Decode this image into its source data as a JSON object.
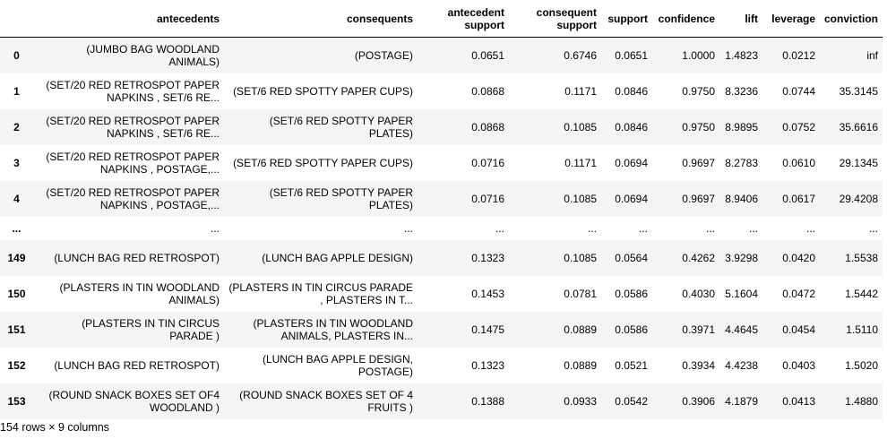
{
  "columns": [
    "",
    "antecedents",
    "consequents",
    "antecedent support",
    "consequent support",
    "support",
    "confidence",
    "lift",
    "leverage",
    "conviction"
  ],
  "rows": [
    {
      "index": "0",
      "antecedents": "(JUMBO BAG WOODLAND ANIMALS)",
      "consequents": "(POSTAGE)",
      "antecedent_support": "0.0651",
      "consequent_support": "0.6746",
      "support": "0.0651",
      "confidence": "1.0000",
      "lift": "1.4823",
      "leverage": "0.0212",
      "conviction": "inf"
    },
    {
      "index": "1",
      "antecedents": "(SET/20 RED RETROSPOT PAPER NAPKINS , SET/6 RE...",
      "consequents": "(SET/6 RED SPOTTY PAPER CUPS)",
      "antecedent_support": "0.0868",
      "consequent_support": "0.1171",
      "support": "0.0846",
      "confidence": "0.9750",
      "lift": "8.3236",
      "leverage": "0.0744",
      "conviction": "35.3145"
    },
    {
      "index": "2",
      "antecedents": "(SET/20 RED RETROSPOT PAPER NAPKINS , SET/6 RE...",
      "consequents": "(SET/6 RED SPOTTY PAPER PLATES)",
      "antecedent_support": "0.0868",
      "consequent_support": "0.1085",
      "support": "0.0846",
      "confidence": "0.9750",
      "lift": "8.9895",
      "leverage": "0.0752",
      "conviction": "35.6616"
    },
    {
      "index": "3",
      "antecedents": "(SET/20 RED RETROSPOT PAPER NAPKINS , POSTAGE,...",
      "consequents": "(SET/6 RED SPOTTY PAPER CUPS)",
      "antecedent_support": "0.0716",
      "consequent_support": "0.1171",
      "support": "0.0694",
      "confidence": "0.9697",
      "lift": "8.2783",
      "leverage": "0.0610",
      "conviction": "29.1345"
    },
    {
      "index": "4",
      "antecedents": "(SET/20 RED RETROSPOT PAPER NAPKINS , POSTAGE,...",
      "consequents": "(SET/6 RED SPOTTY PAPER PLATES)",
      "antecedent_support": "0.0716",
      "consequent_support": "0.1085",
      "support": "0.0694",
      "confidence": "0.9697",
      "lift": "8.9406",
      "leverage": "0.0617",
      "conviction": "29.4208"
    },
    {
      "index": "...",
      "antecedents": "...",
      "consequents": "...",
      "antecedent_support": "...",
      "consequent_support": "...",
      "support": "...",
      "confidence": "...",
      "lift": "...",
      "leverage": "...",
      "conviction": "...",
      "ellipsis": true
    },
    {
      "index": "149",
      "antecedents": "(LUNCH BAG RED RETROSPOT)",
      "consequents": "(LUNCH BAG APPLE DESIGN)",
      "antecedent_support": "0.1323",
      "consequent_support": "0.1085",
      "support": "0.0564",
      "confidence": "0.4262",
      "lift": "3.9298",
      "leverage": "0.0420",
      "conviction": "1.5538"
    },
    {
      "index": "150",
      "antecedents": "(PLASTERS IN TIN WOODLAND ANIMALS)",
      "consequents": "(PLASTERS IN TIN CIRCUS PARADE , PLASTERS IN T...",
      "antecedent_support": "0.1453",
      "consequent_support": "0.0781",
      "support": "0.0586",
      "confidence": "0.4030",
      "lift": "5.1604",
      "leverage": "0.0472",
      "conviction": "1.5442"
    },
    {
      "index": "151",
      "antecedents": "(PLASTERS IN TIN CIRCUS PARADE )",
      "consequents": "(PLASTERS IN TIN WOODLAND ANIMALS, PLASTERS IN...",
      "antecedent_support": "0.1475",
      "consequent_support": "0.0889",
      "support": "0.0586",
      "confidence": "0.3971",
      "lift": "4.4645",
      "leverage": "0.0454",
      "conviction": "1.5110"
    },
    {
      "index": "152",
      "antecedents": "(LUNCH BAG RED RETROSPOT)",
      "consequents": "(LUNCH BAG APPLE DESIGN, POSTAGE)",
      "antecedent_support": "0.1323",
      "consequent_support": "0.0889",
      "support": "0.0521",
      "confidence": "0.3934",
      "lift": "4.4238",
      "leverage": "0.0403",
      "conviction": "1.5020"
    },
    {
      "index": "153",
      "antecedents": "(ROUND SNACK BOXES SET OF4 WOODLAND )",
      "consequents": "(ROUND SNACK BOXES SET OF 4 FRUITS )",
      "antecedent_support": "0.1388",
      "consequent_support": "0.0933",
      "support": "0.0542",
      "confidence": "0.3906",
      "lift": "4.1879",
      "leverage": "0.0413",
      "conviction": "1.4880"
    }
  ],
  "shape_note": "154 rows × 9 columns",
  "colors": {
    "row_stripe": "#f5f5f5",
    "row_plain": "#ffffff",
    "header_rule": "#000000",
    "text": "#000000"
  }
}
